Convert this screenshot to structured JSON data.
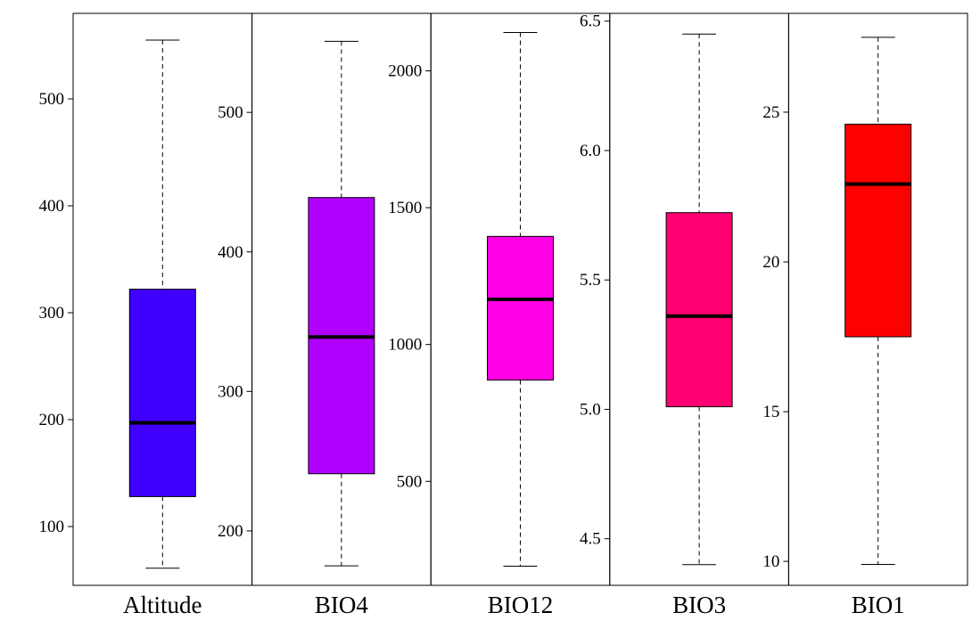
{
  "chart_data": {
    "type": "boxplot",
    "categories": [
      "Altitude",
      "BIO4",
      "BIO12",
      "BIO3",
      "BIO1"
    ],
    "panels": [
      {
        "name": "Altitude",
        "color": "#3f00ff",
        "ylim": [
          45,
          580
        ],
        "ticks": [
          100,
          200,
          300,
          400,
          500
        ],
        "tick_labels": [
          "100",
          "200",
          "300",
          "400",
          "500"
        ],
        "min": 61,
        "q1": 128,
        "median": 197,
        "q3": 322,
        "max": 555
      },
      {
        "name": "BIO4",
        "color": "#b000ff",
        "ylim": [
          161,
          571
        ],
        "ticks": [
          200,
          300,
          400,
          500
        ],
        "tick_labels": [
          "200",
          "300",
          "400",
          "500"
        ],
        "min": 175,
        "q1": 241,
        "median": 339,
        "q3": 439,
        "max": 551
      },
      {
        "name": "BIO12",
        "color": "#ff00e4",
        "ylim": [
          120,
          2210
        ],
        "ticks": [
          500,
          1000,
          1500,
          2000
        ],
        "tick_labels": [
          "500",
          "1000",
          "1500",
          "2000"
        ],
        "min": 190,
        "q1": 870,
        "median": 1165,
        "q3": 1395,
        "max": 2140
      },
      {
        "name": "BIO3",
        "color": "#ff0070",
        "ylim": [
          4.32,
          6.53
        ],
        "ticks": [
          4.5,
          5.0,
          5.5,
          6.0,
          6.5
        ],
        "tick_labels": [
          "4.5",
          "5.0",
          "5.5",
          "6.0",
          "6.5"
        ],
        "min": 4.4,
        "q1": 5.01,
        "median": 5.36,
        "q3": 5.76,
        "max": 6.45
      },
      {
        "name": "BIO1",
        "color": "#ff0000",
        "ylim": [
          9.2,
          28.3
        ],
        "ticks": [
          10,
          15,
          20,
          25
        ],
        "tick_labels": [
          "10",
          "15",
          "20",
          "25"
        ],
        "min": 9.9,
        "q1": 17.5,
        "median": 22.6,
        "q3": 24.6,
        "max": 27.5
      }
    ]
  }
}
